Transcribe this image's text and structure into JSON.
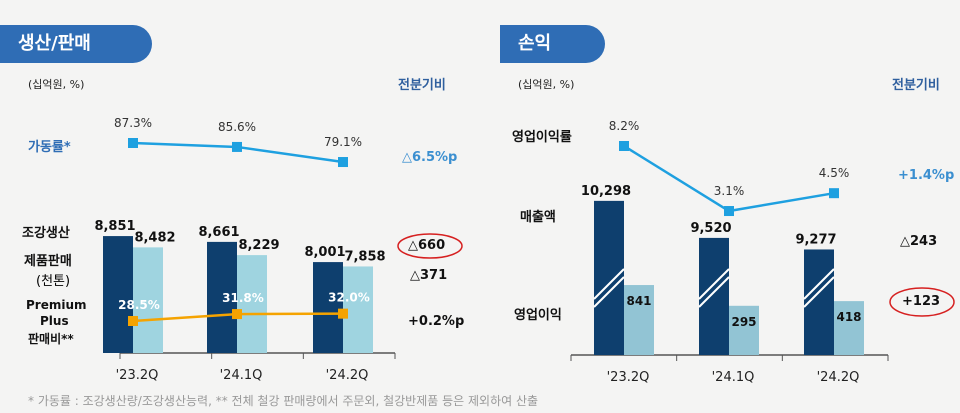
{
  "left": {
    "title": "생산/판매",
    "unit": "(십억원, %)",
    "compare": "전분기비",
    "row_labels": {
      "util": "가동률*",
      "crude": "조강생산",
      "sales": "제품판매",
      "sales_unit": "(천톤)",
      "pp1": "Premium",
      "pp2": "Plus",
      "pp3": "판매비**"
    },
    "changes": {
      "util": "△6.5%p",
      "crude": "△660",
      "sales": "△371",
      "pp": "+0.2%p"
    }
  },
  "right": {
    "title": "손익",
    "unit": "(십억원, %)",
    "compare": "전분기비",
    "row_labels": {
      "opm": "영업이익률",
      "revenue": "매출액",
      "op": "영업이익"
    },
    "changes": {
      "opm": "+1.4%p",
      "revenue": "△243",
      "op": "+123"
    }
  },
  "footnote": "* 가동률 : 조강생산량/조강생산능력, ** 전체 철강 판매량에서 주문외, 철강반제품 등은 제외하여 산출",
  "colors": {
    "dark_bar": "#0e3f6e",
    "light_bar": "#9fd4e0",
    "light_bar2": "#92c4d4",
    "util_line": "#1ea0e0",
    "pp_line": "#f5a300",
    "highlight_circle": "#d62020"
  },
  "chart_data": [
    {
      "type": "bar",
      "categories": [
        "'23.2Q",
        "'24.1Q",
        "'24.2Q"
      ],
      "series": [
        {
          "name": "조강생산",
          "values": [
            8851,
            8661,
            8001
          ]
        },
        {
          "name": "제품판매",
          "values": [
            8482,
            8229,
            7858
          ]
        }
      ],
      "lines": [
        {
          "name": "가동률*",
          "type": "line",
          "values": [
            87.3,
            85.6,
            79.1
          ],
          "labels": [
            "87.3%",
            "85.6%",
            "79.1%"
          ]
        },
        {
          "name": "Premium Plus 판매비**",
          "type": "line",
          "values": [
            28.5,
            31.8,
            32.0
          ],
          "labels": [
            "28.5%",
            "31.8%",
            "32.0%"
          ]
        }
      ],
      "bar_labels": [
        [
          "8,851",
          "8,661",
          "8,001"
        ],
        [
          "8,482",
          "8,229",
          "7,858"
        ]
      ]
    },
    {
      "type": "bar",
      "categories": [
        "'23.2Q",
        "'24.1Q",
        "'24.2Q"
      ],
      "broken_axis": true,
      "series": [
        {
          "name": "매출액",
          "values": [
            10298,
            9520,
            9277
          ]
        },
        {
          "name": "영업이익",
          "values": [
            841,
            295,
            418
          ]
        }
      ],
      "lines": [
        {
          "name": "영업이익률",
          "type": "line",
          "values": [
            8.2,
            3.1,
            4.5
          ],
          "labels": [
            "8.2%",
            "3.1%",
            "4.5%"
          ]
        }
      ],
      "bar_labels": [
        [
          "10,298",
          "9,520",
          "9,277"
        ],
        [
          "841",
          "295",
          "418"
        ]
      ]
    }
  ]
}
